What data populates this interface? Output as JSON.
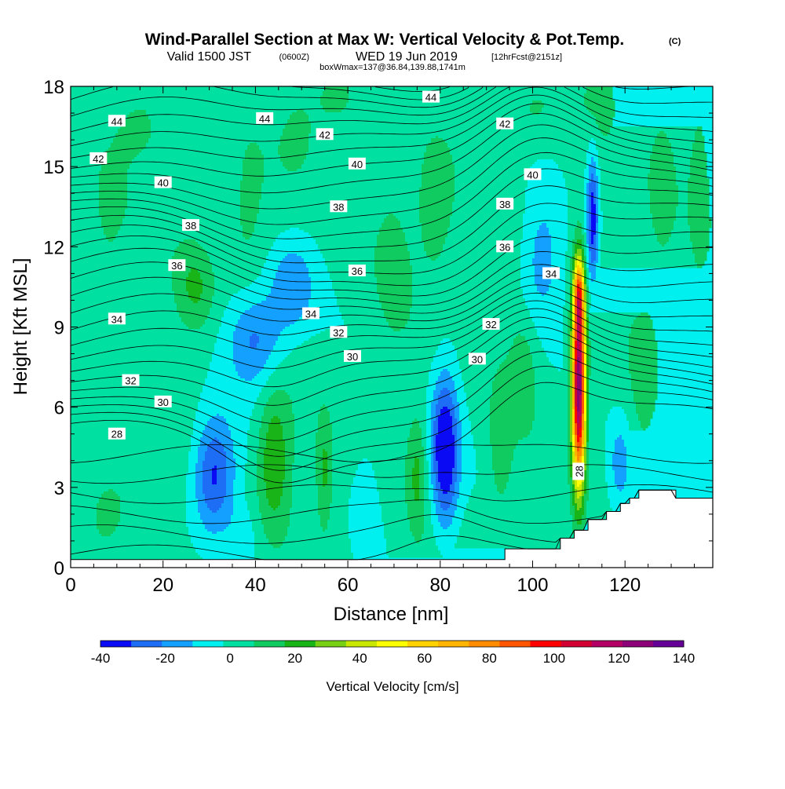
{
  "header": {
    "title": "Wind-Parallel Section at Max W: Vertical Velocity & Pot.Temp.",
    "copyright": "(C)",
    "valid_prefix": "Valid 1500 JST",
    "valid_utc": "(0600Z)",
    "valid_date": "WED 19 Jun 2019",
    "forecast_info": "[12hrFcst@2151z]",
    "box_info": "boxWmax=137@36.84,139.88,1741m"
  },
  "chart_data": {
    "type": "heatmap",
    "title": "Wind-Parallel Section at Max W: Vertical Velocity & Pot.Temp.",
    "xlabel": "Distance [nm]",
    "ylabel": "Height [Kft MSL]",
    "xlim": [
      0,
      139
    ],
    "ylim": [
      0,
      18
    ],
    "x_ticks": [
      0,
      20,
      40,
      60,
      80,
      100,
      120
    ],
    "y_ticks": [
      0,
      3,
      6,
      9,
      12,
      15,
      18
    ],
    "colorbar": {
      "label": "Vertical Velocity [cm/s]",
      "ticks": [
        -40,
        -20,
        0,
        20,
        40,
        60,
        80,
        100,
        120,
        140
      ],
      "levels": [
        -40,
        -30,
        -20,
        -10,
        0,
        10,
        20,
        30,
        40,
        50,
        60,
        70,
        80,
        90,
        100,
        110,
        120,
        130,
        140
      ],
      "colors": [
        "#0a0af5",
        "#1e6ef5",
        "#14a0ff",
        "#00f0f0",
        "#00e0a0",
        "#10cc60",
        "#18b418",
        "#78d014",
        "#c8e800",
        "#ffff00",
        "#ffd200",
        "#ffb400",
        "#ff8c00",
        "#ff5500",
        "#ff0000",
        "#d20032",
        "#b40064",
        "#8c0078",
        "#640096"
      ]
    },
    "theta_contours": [
      {
        "label": "28",
        "level": 28,
        "at": [
          [
            10,
            5.0
          ],
          [
            110,
            3.6
          ]
        ]
      },
      {
        "label": "30",
        "level": 30,
        "at": [
          [
            20,
            6.2
          ],
          [
            61,
            7.9
          ],
          [
            88,
            7.8
          ]
        ]
      },
      {
        "label": "32",
        "level": 32,
        "at": [
          [
            13,
            7.0
          ],
          [
            58,
            8.8
          ],
          [
            91,
            9.1
          ]
        ]
      },
      {
        "label": "34",
        "level": 34,
        "at": [
          [
            10,
            9.3
          ],
          [
            52,
            9.5
          ],
          [
            104,
            11.0
          ]
        ]
      },
      {
        "label": "36",
        "level": 36,
        "at": [
          [
            23,
            11.3
          ],
          [
            62,
            11.1
          ],
          [
            94,
            12.0
          ]
        ]
      },
      {
        "label": "38",
        "level": 38,
        "at": [
          [
            26,
            12.8
          ],
          [
            58,
            13.5
          ],
          [
            94,
            13.6
          ]
        ]
      },
      {
        "label": "40",
        "level": 40,
        "at": [
          [
            20,
            14.4
          ],
          [
            62,
            15.1
          ],
          [
            100,
            14.7
          ]
        ]
      },
      {
        "label": "42",
        "level": 42,
        "at": [
          [
            6,
            15.3
          ],
          [
            55,
            16.2
          ],
          [
            94,
            16.6
          ]
        ]
      },
      {
        "label": "44",
        "level": 44,
        "at": [
          [
            10,
            16.7
          ],
          [
            42,
            16.8
          ],
          [
            78,
            17.6
          ]
        ]
      }
    ],
    "updraft_max": {
      "value": 137,
      "x": 110,
      "height_kft": 5.7
    },
    "terrain": [
      [
        86,
        0.3
      ],
      [
        94,
        0.7
      ],
      [
        106,
        1.1
      ],
      [
        109,
        1.4
      ],
      [
        112,
        1.8
      ],
      [
        116,
        2.1
      ],
      [
        119,
        2.4
      ],
      [
        121,
        2.6
      ],
      [
        123,
        2.9
      ],
      [
        129,
        2.9
      ],
      [
        131,
        2.6
      ],
      [
        139,
        2.6
      ]
    ]
  }
}
